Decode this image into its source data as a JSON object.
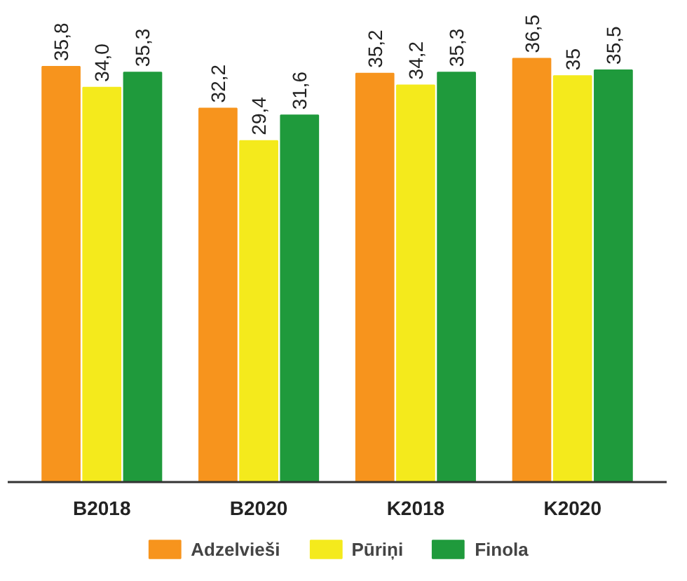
{
  "chart_data": {
    "type": "bar",
    "categories": [
      "B2018",
      "B2020",
      "K2018",
      "K2020"
    ],
    "series": [
      {
        "name": "Adzelvieši",
        "color": "#f7941d",
        "values": [
          35.8,
          32.2,
          35.2,
          36.5
        ],
        "value_labels": [
          "35,8",
          "32,2",
          "35,2",
          "36,5"
        ]
      },
      {
        "name": "Pūriņi",
        "color": "#f4ea1c",
        "values": [
          34.0,
          29.4,
          34.2,
          35
        ],
        "value_labels": [
          "34,0",
          "29,4",
          "34,2",
          "35"
        ]
      },
      {
        "name": "Finola",
        "color": "#1f9a3c",
        "values": [
          35.3,
          31.6,
          35.3,
          35.5
        ],
        "value_labels": [
          "35,3",
          "31,6",
          "35,3",
          "35,5"
        ]
      }
    ],
    "legend": "bottom",
    "grid": false
  }
}
